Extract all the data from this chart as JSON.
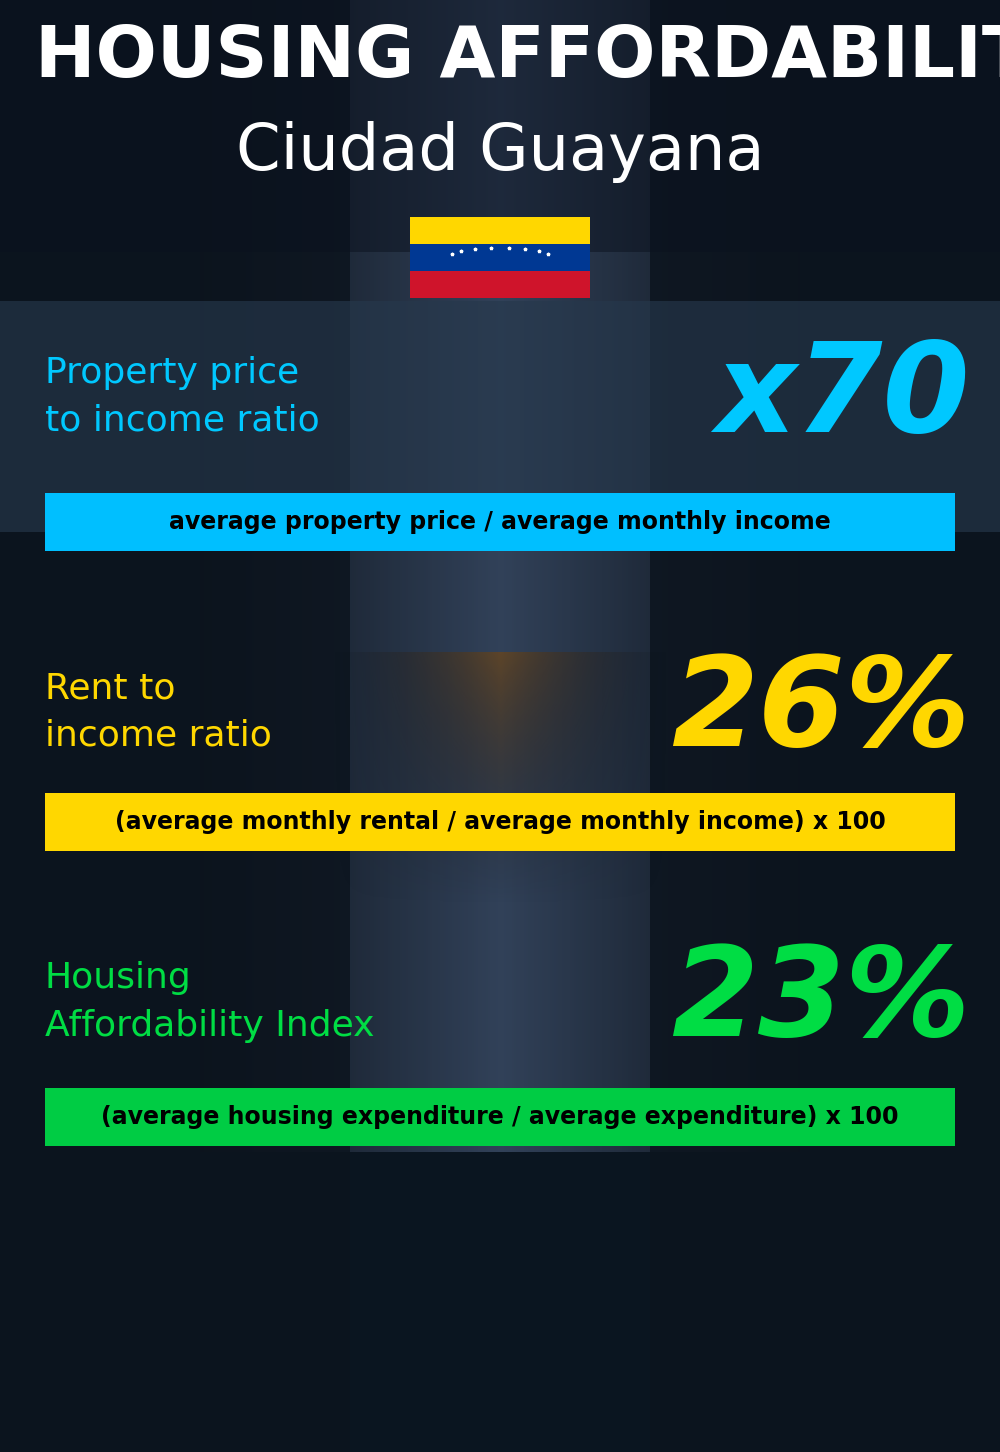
{
  "title_line1": "HOUSING AFFORDABILITY",
  "title_line2": "Ciudad Guayana",
  "bg_color": "#0a1520",
  "section1_label": "Property price\nto income ratio",
  "section1_value": "x70",
  "section1_label_color": "#00c8ff",
  "section1_value_color": "#00c8ff",
  "section1_formula": "average property price / average monthly income",
  "section1_formula_bg": "#00bfff",
  "section1_formula_color": "#000000",
  "section2_label": "Rent to\nincome ratio",
  "section2_value": "26%",
  "section2_label_color": "#ffd700",
  "section2_value_color": "#ffd700",
  "section2_formula": "(average monthly rental / average monthly income) x 100",
  "section2_formula_bg": "#ffd700",
  "section2_formula_color": "#000000",
  "section3_label": "Housing\nAffordability Index",
  "section3_value": "23%",
  "section3_label_color": "#00dd44",
  "section3_value_color": "#00dd44",
  "section3_formula": "(average housing expenditure / average expenditure) x 100",
  "section3_formula_bg": "#00cc44",
  "section3_formula_color": "#000000",
  "flag_colors": [
    "#ffd700",
    "#003893",
    "#cf142b"
  ],
  "title_color": "#ffffff",
  "title1_fontsize": 52,
  "title2_fontsize": 46,
  "label_fontsize": 26,
  "value_fontsize": 90,
  "formula_fontsize": 17
}
